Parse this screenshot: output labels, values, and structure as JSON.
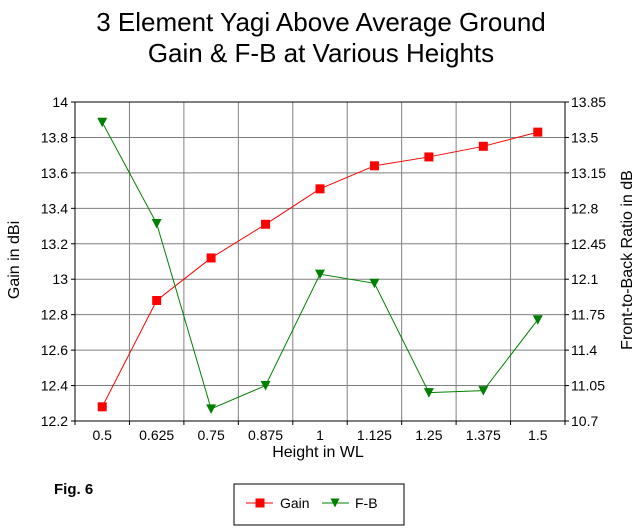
{
  "chart_data": {
    "type": "line",
    "title": "3 Element Yagi Above Average Ground",
    "subtitle": "Gain & F-B at Various Heights",
    "xlabel": "Height in WL",
    "ylabel": "Gain in dBi",
    "y2label": "Front-to-Back Ratio in dB",
    "categories": [
      "0.5",
      "0.625",
      "0.75",
      "0.875",
      "1",
      "1.125",
      "1.25",
      "1.375",
      "1.5"
    ],
    "ylim": [
      12.2,
      14
    ],
    "yticks": [
      "12.2",
      "12.4",
      "12.6",
      "12.8",
      "13",
      "13.2",
      "13.4",
      "13.6",
      "13.8",
      "14"
    ],
    "y2lim": [
      10.7,
      13.85
    ],
    "y2ticks": [
      "10.7",
      "11.05",
      "11.4",
      "11.75",
      "12.1",
      "12.45",
      "12.8",
      "13.15",
      "13.5",
      "13.85"
    ],
    "grid": true,
    "legend_position": "bottom-center",
    "series": [
      {
        "name": "Gain",
        "axis": "left",
        "color": "#ff0000",
        "marker": "square",
        "values": [
          12.28,
          12.88,
          13.12,
          13.31,
          13.51,
          13.64,
          13.69,
          13.75,
          13.83
        ]
      },
      {
        "name": "F-B",
        "axis": "right",
        "color": "#008000",
        "marker": "triangle-down",
        "values": [
          13.65,
          12.65,
          10.82,
          11.05,
          12.15,
          12.06,
          10.98,
          11.0,
          11.7
        ]
      }
    ]
  },
  "caption": "Fig. 6"
}
